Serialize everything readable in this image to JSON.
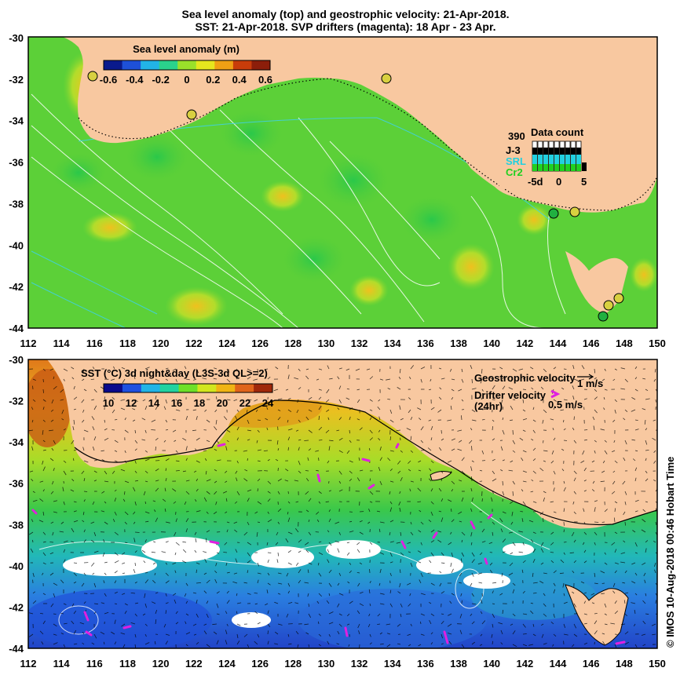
{
  "title_line1": "Sea level anomaly (top) and geostrophic velocity: 21-Apr-2018.",
  "title_line2": "SST: 21-Apr-2018. SVP drifters (magenta): 18 Apr - 23 Apr.",
  "top_panel": {
    "colorbar_title": "Sea level anomaly (m)",
    "colorbar_ticks": [
      "-0.6",
      "-0.4",
      "-0.2",
      "0",
      "0.2",
      "0.4",
      "0.6"
    ],
    "colorbar_colors": [
      "#0a1a8c",
      "#1e50d8",
      "#22b4e6",
      "#2ad28c",
      "#9ae02a",
      "#e6e61e",
      "#f0a014",
      "#c83c0a",
      "#8c1e0a"
    ],
    "y_ticks": [
      "-30",
      "-32",
      "-34",
      "-36",
      "-38",
      "-40",
      "-42",
      "-44"
    ],
    "x_ticks": [
      "112",
      "114",
      "116",
      "118",
      "120",
      "122",
      "124",
      "126",
      "128",
      "130",
      "132",
      "134",
      "136",
      "138",
      "140",
      "142",
      "144",
      "146",
      "148",
      "150"
    ],
    "data_count": {
      "title": "Data count",
      "max_label": "390",
      "missions": [
        "J-3",
        "SRL",
        "Cr2"
      ],
      "mission_colors": [
        "#000000",
        "#22d0e0",
        "#20d020"
      ],
      "x_ticks": [
        "-5d",
        "0",
        "5"
      ]
    }
  },
  "bottom_panel": {
    "colorbar_title": "SST (°C) 3d night&day (L3S-3d QL>=2)",
    "colorbar_ticks": [
      "10",
      "12",
      "14",
      "16",
      "18",
      "20",
      "22",
      "24"
    ],
    "colorbar_colors": [
      "#0a0a8c",
      "#1e50e0",
      "#22b4e6",
      "#22d2a0",
      "#6ee028",
      "#d2e61e",
      "#f0b414",
      "#e0641a",
      "#a0280a"
    ],
    "y_ticks": [
      "-30",
      "-32",
      "-34",
      "-36",
      "-38",
      "-40",
      "-42",
      "-44"
    ],
    "x_ticks": [
      "112",
      "114",
      "116",
      "118",
      "120",
      "122",
      "124",
      "126",
      "128",
      "130",
      "132",
      "134",
      "136",
      "138",
      "140",
      "142",
      "144",
      "146",
      "148",
      "150"
    ],
    "legend_geo": "Geostrophic velocity",
    "legend_geo_scale": "1 m/s",
    "legend_drifter": "Drifter velocity",
    "legend_drifter_sub": "(24hr)",
    "legend_drifter_scale": "0.5 m/s"
  },
  "credit": "© IMOS 10-Aug-2018 00:46 Hobart Time",
  "colors": {
    "land": "#f8c8a0",
    "ocean_green": "#6cd434",
    "magenta": "#e020e0"
  }
}
